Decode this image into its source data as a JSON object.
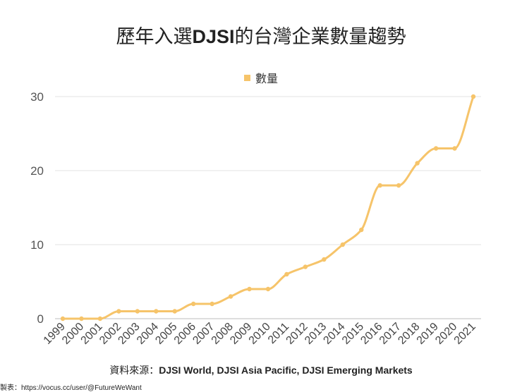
{
  "chart_data": {
    "type": "line",
    "title_prefix": "歷年入選",
    "title_bold": "DJSI",
    "title_suffix": "的台灣企業數量趨勢",
    "legend": [
      "數量"
    ],
    "x": [
      "1999",
      "2000",
      "2001",
      "2002",
      "2003",
      "2004",
      "2005",
      "2006",
      "2007",
      "2008",
      "2009",
      "2010",
      "2011",
      "2012",
      "2013",
      "2014",
      "2015",
      "2016",
      "2017",
      "2018",
      "2019",
      "2020",
      "2021"
    ],
    "series": [
      {
        "name": "數量",
        "values": [
          0,
          0,
          0,
          1,
          1,
          1,
          1,
          2,
          2,
          3,
          4,
          4,
          6,
          7,
          8,
          10,
          12,
          18,
          18,
          21,
          23,
          23,
          30
        ]
      }
    ],
    "ylim": [
      0,
      30
    ],
    "yticks": [
      0,
      10,
      20,
      30
    ],
    "grid": true,
    "line_color": "#f6c46a"
  },
  "source": {
    "label": "資料來源：",
    "text": "DJSI World, DJSI Asia Pacific, DJSI Emerging Markets"
  },
  "credit": {
    "label": "製表：",
    "text": "https://vocus.cc/user/@FutureWeWant"
  }
}
